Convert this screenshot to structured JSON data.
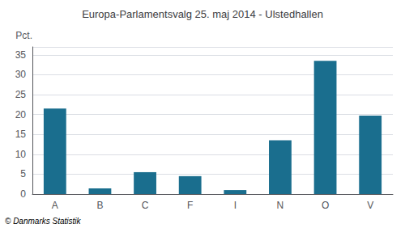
{
  "chart_data": {
    "type": "bar",
    "title": "Europa-Parlamentsvalg 25. maj 2014 - Ulstedhallen",
    "categories": [
      "A",
      "B",
      "C",
      "F",
      "I",
      "N",
      "O",
      "V"
    ],
    "values": [
      21.5,
      1.4,
      5.5,
      4.5,
      1.0,
      13.5,
      33.5,
      19.7
    ],
    "color": "#1a6e8e",
    "ylabel": "Pct.",
    "ylim": [
      0,
      37
    ],
    "yticks": [
      0,
      5,
      10,
      15,
      20,
      25,
      30,
      35
    ],
    "grid": true,
    "annotations": [
      "© Danmarks Statistik"
    ]
  }
}
